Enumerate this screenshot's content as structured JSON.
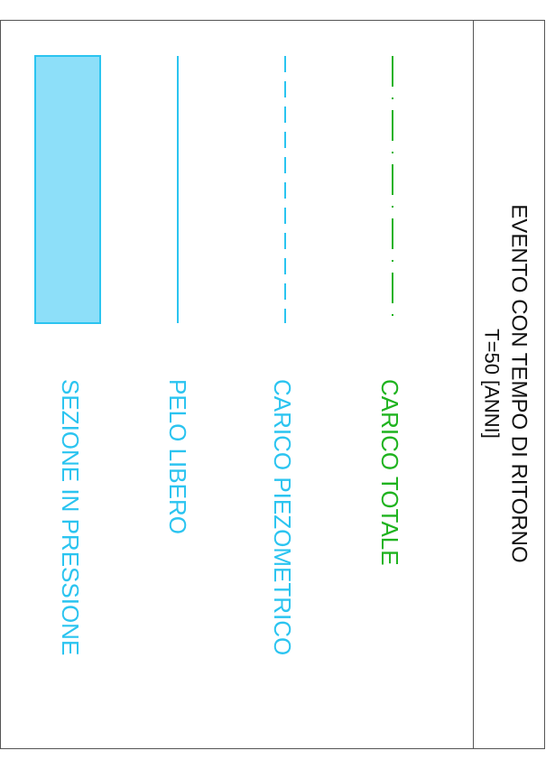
{
  "title": "EVENTO CON TEMPO DI RITORNO",
  "subtitle": "T=50 [ANNI]",
  "legend": [
    {
      "label": "CARICO TOTALE"
    },
    {
      "label": "CARICO PIEZOMETRICO"
    },
    {
      "label": "PELO LIBERO"
    },
    {
      "label": "SEZIONE IN PRESSIONE"
    }
  ]
}
